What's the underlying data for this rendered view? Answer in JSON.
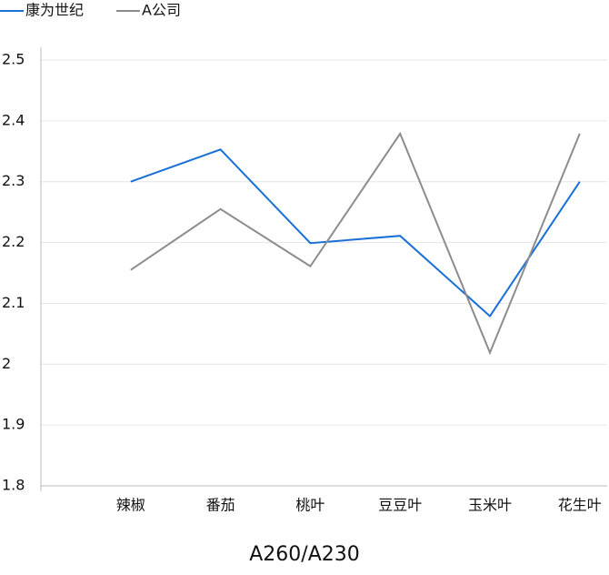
{
  "chart_data": {
    "type": "line",
    "x_label": "A260/A230",
    "categories": [
      "辣椒",
      "番茄",
      "桃叶",
      "豆豆叶",
      "玉米叶",
      "花生叶"
    ],
    "series": [
      {
        "name": "康为世纪",
        "color": "#1a6fd6",
        "values": [
          2.3,
          2.353,
          2.199,
          2.211,
          2.079,
          2.3
        ]
      },
      {
        "name": "A公司",
        "color": "#8c8c8c",
        "values": [
          2.155,
          2.255,
          2.161,
          2.379,
          2.019,
          2.379
        ]
      }
    ],
    "ylim": [
      1.8,
      2.5
    ],
    "yticks": [
      1.8,
      1.9,
      2,
      2.1,
      2.2,
      2.3,
      2.4,
      2.5
    ],
    "grid": true,
    "legend": "top-left"
  }
}
